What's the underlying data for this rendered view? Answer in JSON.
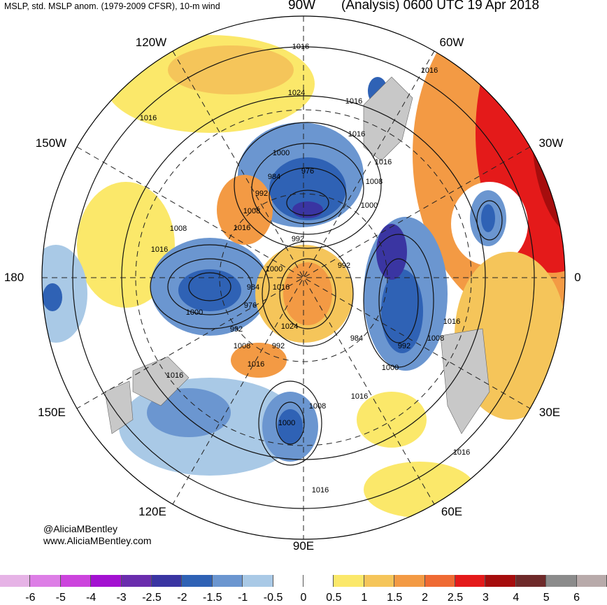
{
  "header": {
    "left": "MSLP, std. MSLP anom. (1979-2009 CFSR), 10-m wind",
    "right": "(Analysis) 0600 UTC 19 Apr 2018",
    "top_lon": "90W"
  },
  "credits": {
    "twitter": "@AliciaMBentley",
    "website": "www.AliciaMBentley.com"
  },
  "longitude_labels": {
    "lon_120w": "120W",
    "lon_60w": "60W",
    "lon_150w": "150W",
    "lon_30w": "30W",
    "lon_180": "180",
    "lon_0": "0",
    "lon_150e": "150E",
    "lon_30e": "30E",
    "lon_120e": "120E",
    "lon_60e": "60E",
    "lon_90e": "90E"
  },
  "isobar_labels": [
    "1016",
    "1016",
    "1024",
    "1016",
    "1016",
    "1016",
    "1016",
    "1000",
    "976",
    "984",
    "992",
    "1008",
    "1000",
    "1008",
    "1008",
    "1016",
    "1016",
    "992",
    "1000",
    "992",
    "984",
    "976",
    "1016",
    "1000",
    "992",
    "1024",
    "1008",
    "992",
    "1016",
    "984",
    "992",
    "1016",
    "1008",
    "1000",
    "1016",
    "1016",
    "1008",
    "1000",
    "1016",
    "1016"
  ],
  "colorbar": {
    "ticks": [
      "-6",
      "-5",
      "-4",
      "-3",
      "-2.5",
      "-2",
      "-1.5",
      "-1",
      "-0.5",
      "0",
      "0.5",
      "1",
      "1.5",
      "2",
      "2.5",
      "3",
      "4",
      "5",
      "6"
    ],
    "colors": [
      "#e6b3e6",
      "#dd7ee6",
      "#cc44dd",
      "#a311d1",
      "#6a2dad",
      "#3a35a2",
      "#2f62b5",
      "#6b96d0",
      "#a9c9e6",
      "#ffffff",
      "#ffffff",
      "#fbe86a",
      "#f5c55a",
      "#f39a44",
      "#ef6a33",
      "#e41a1a",
      "#a60d0d",
      "#6e2a2a",
      "#8b8b8b",
      "#b8aaaa"
    ]
  }
}
